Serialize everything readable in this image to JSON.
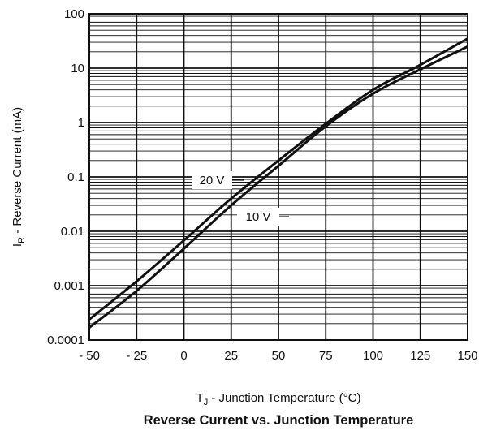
{
  "chart_data": {
    "type": "line",
    "title": "Reverse Current vs. Junction Temperature",
    "xlabel": {
      "main": "T",
      "sub": "J",
      "rest": " - Junction Temperature (°C)"
    },
    "ylabel": {
      "main": "I",
      "sub": "R",
      "rest": " - Reverse Current (mA)"
    },
    "x_ticks": [
      -50,
      -25,
      0,
      25,
      50,
      75,
      100,
      125,
      150
    ],
    "x_tick_labels": [
      "- 50",
      "- 25",
      "0",
      "25",
      "50",
      "75",
      "100",
      "125",
      "150"
    ],
    "y_ticks": [
      0.0001,
      0.001,
      0.01,
      0.1,
      1,
      10,
      100
    ],
    "y_tick_labels": [
      "0.0001",
      "0.001",
      "0.01",
      "0.1",
      "1",
      "10",
      "100"
    ],
    "xlim": [
      -50,
      150
    ],
    "ylim": [
      0.0001,
      100
    ],
    "y_scale": "log",
    "grid": true,
    "series": [
      {
        "name": "20 V",
        "x": [
          -50,
          -25,
          0,
          25,
          50,
          75,
          100,
          125,
          150
        ],
        "values": [
          0.00024,
          0.0012,
          0.0068,
          0.04,
          0.2,
          0.95,
          4.0,
          11.5,
          35
        ]
      },
      {
        "name": "10 V",
        "x": [
          -50,
          -25,
          0,
          25,
          50,
          75,
          100,
          125,
          150
        ],
        "values": [
          0.00017,
          0.0008,
          0.0048,
          0.03,
          0.16,
          0.85,
          3.4,
          9.5,
          25
        ]
      }
    ],
    "colors": {
      "line": "#111111",
      "grid": "#111111",
      "background": "#ffffff"
    }
  }
}
